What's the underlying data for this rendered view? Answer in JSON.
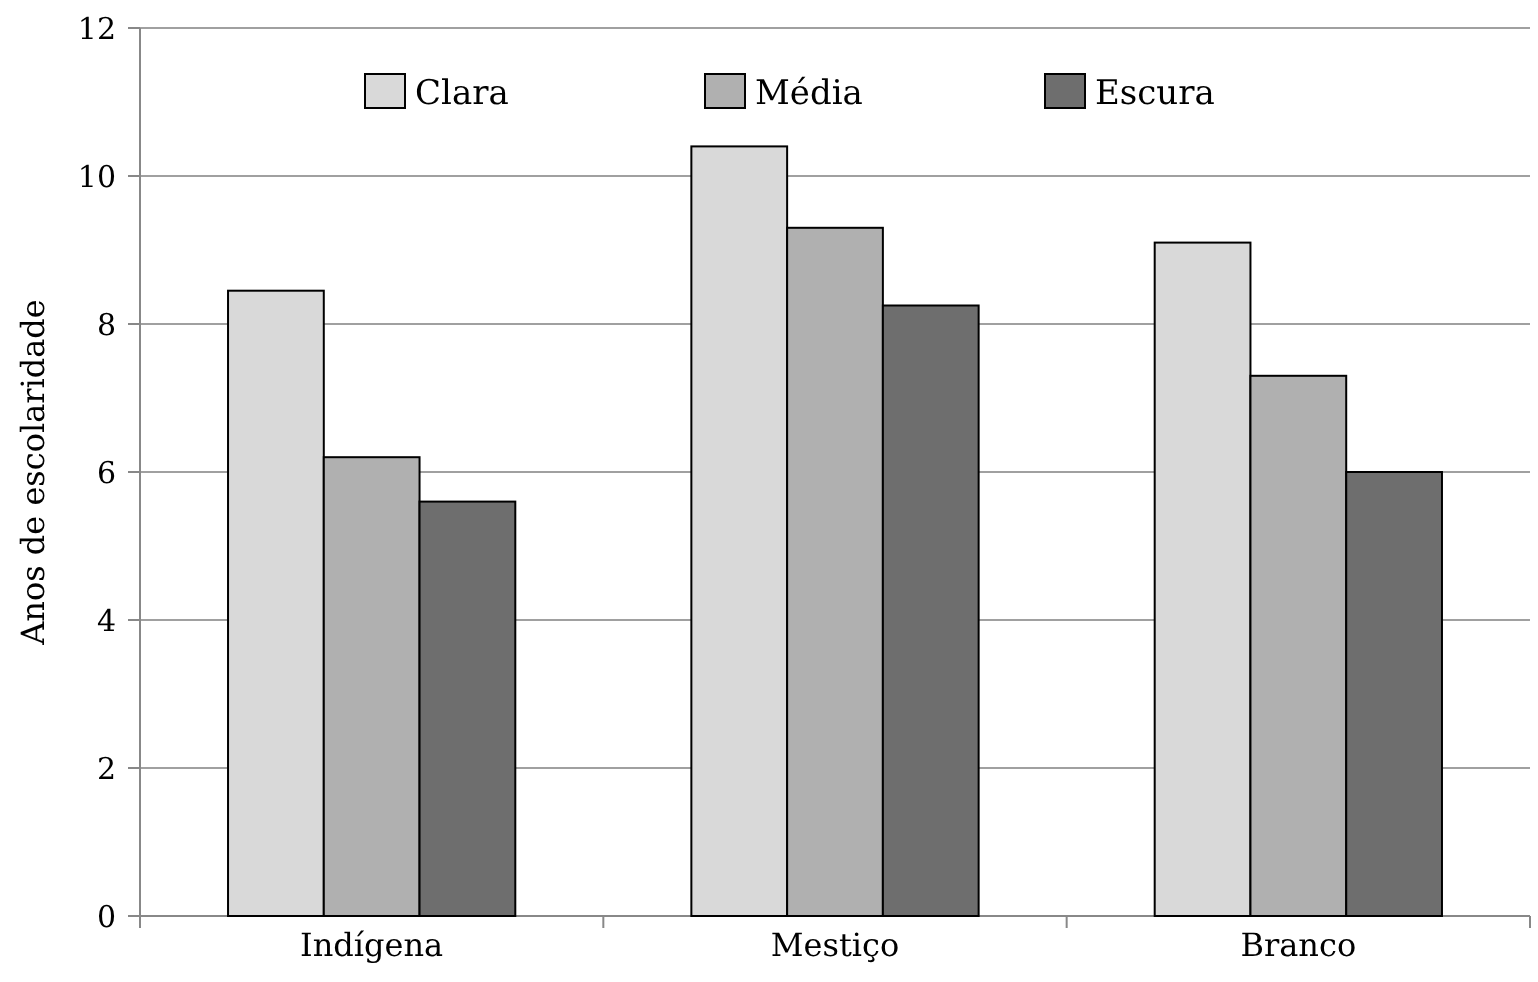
{
  "chart_data": {
    "type": "bar",
    "ylabel": "Anos de escolaridade",
    "categories": [
      "Indígena",
      "Mestiço",
      "Branco"
    ],
    "series": [
      {
        "name": "Clara",
        "color": "#d9d9d9",
        "values": [
          8.45,
          10.4,
          9.1
        ]
      },
      {
        "name": "Média",
        "color": "#b0b0b0",
        "values": [
          6.2,
          9.3,
          7.3
        ]
      },
      {
        "name": "Escura",
        "color": "#6e6e6e",
        "values": [
          5.6,
          8.25,
          6.0
        ]
      }
    ],
    "ylim": [
      0,
      12
    ],
    "yticks": [
      0,
      2,
      4,
      6,
      8,
      10,
      12
    ],
    "grid": "y",
    "legend": "top"
  }
}
